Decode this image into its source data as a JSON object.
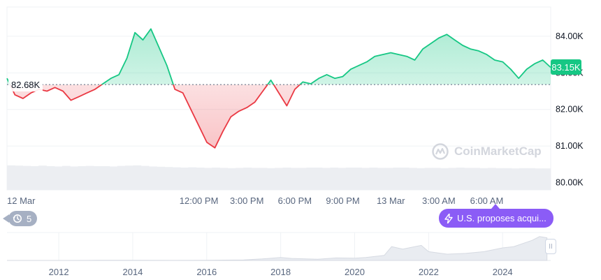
{
  "chart_data": {
    "type": "line",
    "y_ticks": [
      "84.00K",
      "83.00K",
      "82.00K",
      "81.00K",
      "80.00K"
    ],
    "ylim": [
      79.8,
      84.8
    ],
    "reference_value": 82.68,
    "reference_label": "82.68K",
    "current_value": 83.15,
    "current_label": "83.15K",
    "x_ticks": [
      "12 Mar",
      "12:00 PM",
      "3:00 PM",
      "6:00 PM",
      "9:00 PM",
      "13 Mar",
      "3:00 AM",
      "6:00 AM"
    ],
    "x_hours": [
      0,
      12,
      15,
      18,
      21,
      24,
      27,
      30
    ],
    "series": [
      {
        "x": [
          0,
          0.5,
          1,
          1.5,
          2,
          2.5,
          3,
          3.5,
          4,
          4.5,
          5,
          5.5,
          6,
          6.5,
          7,
          7.5,
          8,
          8.5,
          9,
          9.5,
          10,
          10.5,
          11,
          11.5,
          12,
          12.5,
          13,
          13.5,
          14,
          14.5,
          15,
          15.5,
          16,
          16.5,
          17,
          17.5,
          18,
          18.5,
          19,
          19.5,
          20,
          20.5,
          21,
          21.5,
          22,
          22.5,
          23,
          23.5,
          24,
          24.5,
          25,
          25.5,
          26,
          26.5,
          27,
          27.5,
          28,
          28.5,
          29,
          29.5,
          30,
          30.5,
          31,
          31.5,
          32,
          32.5,
          33,
          33.5,
          34
        ],
        "values": [
          82.85,
          82.4,
          82.3,
          82.45,
          82.55,
          82.5,
          82.6,
          82.5,
          82.25,
          82.35,
          82.45,
          82.55,
          82.7,
          82.85,
          82.95,
          83.4,
          84.1,
          83.9,
          84.2,
          83.7,
          83.2,
          82.55,
          82.45,
          82.0,
          81.55,
          81.1,
          80.95,
          81.4,
          81.8,
          81.95,
          82.05,
          82.2,
          82.5,
          82.8,
          82.45,
          82.1,
          82.55,
          82.75,
          82.7,
          82.85,
          82.95,
          82.85,
          82.9,
          83.1,
          83.2,
          83.3,
          83.45,
          83.5,
          83.55,
          83.5,
          83.45,
          83.35,
          83.65,
          83.8,
          83.95,
          84.05,
          83.9,
          83.75,
          83.65,
          83.6,
          83.5,
          83.35,
          83.3,
          83.1,
          82.85,
          83.1,
          83.25,
          83.35,
          83.15
        ]
      }
    ],
    "volume": {
      "values": [
        0.88,
        0.87,
        0.86,
        0.85,
        0.87,
        0.85,
        0.84,
        0.86,
        0.84,
        0.85,
        0.86,
        0.85,
        0.85,
        0.84,
        0.86,
        0.87,
        0.88,
        0.86,
        0.84,
        0.83,
        0.82,
        0.81,
        0.8,
        0.81,
        0.8,
        0.79,
        0.8,
        0.79,
        0.78,
        0.79,
        0.8,
        0.79,
        0.79,
        0.78,
        0.79,
        0.8,
        0.79,
        0.79,
        0.8,
        0.8,
        0.79,
        0.8,
        0.79,
        0.8,
        0.8,
        0.79,
        0.8,
        0.79,
        0.79,
        0.8,
        0.8,
        0.79,
        0.78,
        0.79,
        0.79,
        0.78,
        0.79,
        0.8,
        0.79,
        0.79,
        0.78,
        0.79,
        0.78,
        0.78,
        0.77,
        0.78,
        0.78,
        0.77,
        0.77
      ]
    }
  },
  "navigator": {
    "x_ticks": [
      "2012",
      "2014",
      "2016",
      "2018",
      "2020",
      "2022",
      "2024"
    ],
    "x_years": [
      2012,
      2014,
      2016,
      2018,
      2020,
      2022,
      2024
    ],
    "x_range": [
      2010.6,
      2025.3
    ],
    "curve": {
      "x": [
        2010.6,
        2012,
        2013,
        2014,
        2015,
        2016,
        2017,
        2017.5,
        2018,
        2018.3,
        2019,
        2019.5,
        2020,
        2020.3,
        2020.8,
        2021,
        2021.3,
        2021.8,
        2022,
        2022.5,
        2023,
        2023.5,
        2024,
        2024.3,
        2024.8,
        2025,
        2025.2
      ],
      "values": [
        0,
        0,
        0.005,
        0.006,
        0.004,
        0.007,
        0.02,
        0.06,
        0.12,
        0.08,
        0.05,
        0.1,
        0.09,
        0.12,
        0.2,
        0.55,
        0.45,
        0.6,
        0.35,
        0.25,
        0.28,
        0.35,
        0.5,
        0.55,
        0.8,
        0.95,
        0.9
      ]
    }
  },
  "history_count": "5",
  "news_label": "U.S. proposes acqui...",
  "watermark": "CoinMarketCap",
  "nav_handle": "II",
  "colors": {
    "up": "#16c784",
    "down": "#ea3943",
    "grid": "#eff2f5",
    "news": "#8b5cf6",
    "history": "#a6b0c3"
  }
}
